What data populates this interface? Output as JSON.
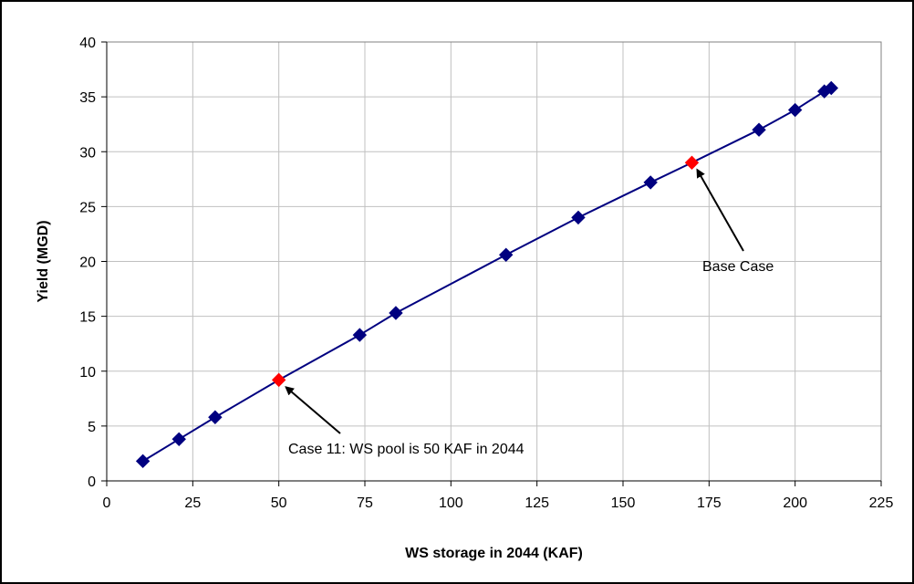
{
  "chart_data": {
    "type": "scatter",
    "xlabel": "WS storage in 2044 (KAF)",
    "ylabel": "Yield (MGD)",
    "xlim": [
      0,
      225
    ],
    "ylim": [
      0,
      40
    ],
    "x_ticks": [
      0,
      25,
      50,
      75,
      100,
      125,
      150,
      175,
      200,
      225
    ],
    "y_ticks": [
      0,
      5,
      10,
      15,
      20,
      25,
      30,
      35,
      40
    ],
    "grid": "both",
    "line_color": "#000080",
    "series": [
      {
        "color": "#000080",
        "marker": "diamond",
        "points": [
          {
            "x": 10.5,
            "y": 1.8
          },
          {
            "x": 21,
            "y": 3.8
          },
          {
            "x": 31.5,
            "y": 5.8
          },
          {
            "x": 50,
            "y": 9.2,
            "highlight": true
          },
          {
            "x": 73.5,
            "y": 13.3
          },
          {
            "x": 84,
            "y": 15.3
          },
          {
            "x": 116,
            "y": 20.6
          },
          {
            "x": 137,
            "y": 24.0
          },
          {
            "x": 158,
            "y": 27.2
          },
          {
            "x": 170,
            "y": 29.0,
            "highlight": true
          },
          {
            "x": 189.5,
            "y": 32.0
          },
          {
            "x": 200,
            "y": 33.8
          },
          {
            "x": 208.5,
            "y": 35.5
          },
          {
            "x": 210.5,
            "y": 35.8
          }
        ]
      }
    ],
    "highlight_color": "#ff0000",
    "annotations": [
      {
        "text": "Base Case",
        "target": {
          "x": 170,
          "y": 29.0
        }
      },
      {
        "text": "Case 11: WS pool is 50 KAF in 2044",
        "target": {
          "x": 50,
          "y": 9.2
        }
      }
    ]
  }
}
